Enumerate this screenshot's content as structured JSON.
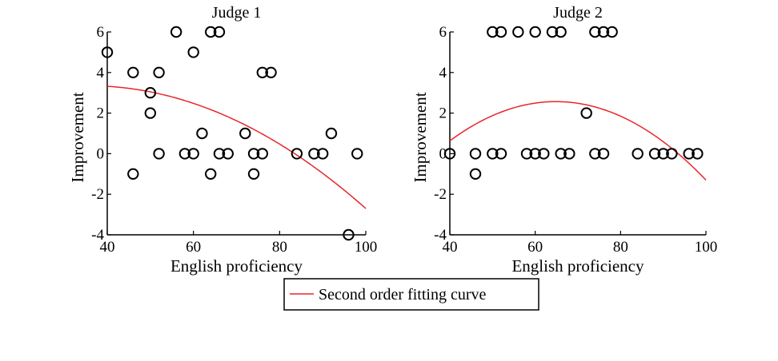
{
  "chart_data": [
    {
      "type": "scatter",
      "title": "Judge 1",
      "xlabel": "English proficiency",
      "ylabel": "Improvement",
      "xlim": [
        40,
        100
      ],
      "ylim": [
        -4,
        6
      ],
      "xticks": [
        "40",
        "60",
        "80",
        "100"
      ],
      "yticks": [
        "-4",
        "-2",
        "0",
        "2",
        "4",
        "6"
      ],
      "grid": false,
      "points": [
        [
          40,
          5
        ],
        [
          46,
          4
        ],
        [
          46,
          -1
        ],
        [
          50,
          3
        ],
        [
          50,
          2
        ],
        [
          52,
          4
        ],
        [
          52,
          0
        ],
        [
          56,
          6
        ],
        [
          58,
          0
        ],
        [
          60,
          5
        ],
        [
          60,
          0
        ],
        [
          62,
          1
        ],
        [
          64,
          6
        ],
        [
          64,
          -1
        ],
        [
          66,
          6
        ],
        [
          66,
          0
        ],
        [
          68,
          0
        ],
        [
          72,
          1
        ],
        [
          74,
          0
        ],
        [
          74,
          -1
        ],
        [
          76,
          4
        ],
        [
          76,
          0
        ],
        [
          78,
          4
        ],
        [
          84,
          0
        ],
        [
          88,
          0
        ],
        [
          90,
          0
        ],
        [
          92,
          1
        ],
        [
          96,
          -4
        ],
        [
          98,
          0
        ]
      ],
      "fit": {
        "name": "Second order fitting curve",
        "color": "#e8262a",
        "x_range": [
          40,
          100
        ],
        "coefficients": [
          -0.00146,
          0.104,
          1.496
        ]
      }
    },
    {
      "type": "scatter",
      "title": "Judge 2",
      "xlabel": "English proficiency",
      "ylabel": "Improvement",
      "xlim": [
        40,
        100
      ],
      "ylim": [
        -4,
        6
      ],
      "xticks": [
        "40",
        "60",
        "80",
        "100"
      ],
      "yticks": [
        "-4",
        "-2",
        "0",
        "2",
        "4",
        "6"
      ],
      "grid": false,
      "points": [
        [
          40,
          0
        ],
        [
          46,
          0
        ],
        [
          46,
          -1
        ],
        [
          50,
          6
        ],
        [
          50,
          0
        ],
        [
          52,
          6
        ],
        [
          52,
          0
        ],
        [
          56,
          6
        ],
        [
          58,
          0
        ],
        [
          60,
          6
        ],
        [
          60,
          0
        ],
        [
          62,
          0
        ],
        [
          64,
          6
        ],
        [
          66,
          6
        ],
        [
          66,
          0
        ],
        [
          68,
          0
        ],
        [
          72,
          2
        ],
        [
          74,
          6
        ],
        [
          74,
          0
        ],
        [
          76,
          6
        ],
        [
          76,
          0
        ],
        [
          78,
          6
        ],
        [
          84,
          0
        ],
        [
          88,
          0
        ],
        [
          90,
          0
        ],
        [
          92,
          0
        ],
        [
          96,
          0
        ],
        [
          98,
          0
        ]
      ],
      "fit": {
        "name": "Second order fitting curve",
        "color": "#e8262a",
        "x_range": [
          40,
          100
        ],
        "coefficients": [
          -0.00313,
          0.406,
          -10.6
        ]
      }
    }
  ],
  "legend": {
    "label": "Second order fitting curve",
    "color": "#e8262a",
    "placement": "bottom-center"
  }
}
